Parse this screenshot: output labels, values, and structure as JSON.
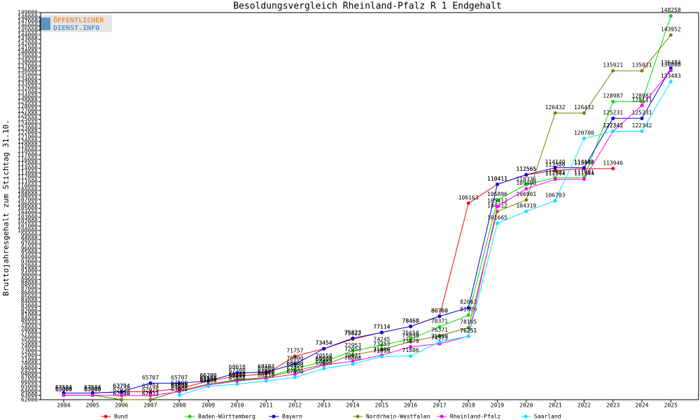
{
  "chart_data": {
    "type": "line",
    "title": "Besoldungsvergleich Rheinland-Pfalz R 1 Endgehalt",
    "y_label": "Bruttojahresgehalt zum Stichtag 31.10.",
    "logo": [
      "ÖFFENTLICHER",
      "DIENST.INFO"
    ],
    "categories": [
      "2004",
      "2005",
      "2006",
      "2007",
      "2008",
      "2009",
      "2010",
      "2011",
      "2012",
      "2013",
      "2014",
      "2015",
      "2016",
      "2017",
      "2018",
      "2019",
      "2020",
      "2021",
      "2022",
      "2023",
      "2024",
      "2025"
    ],
    "ylim": [
      62000,
      149000
    ],
    "yticks": [
      62000,
      63000,
      64000,
      65000,
      66000,
      67000,
      68000,
      69000,
      70000,
      71000,
      72000,
      73000,
      74000,
      75000,
      76000,
      77000,
      78000,
      79000,
      80000,
      81000,
      82000,
      83000,
      84000,
      85000,
      86000,
      87000,
      88000,
      89000,
      90000,
      91000,
      92000,
      93000,
      94000,
      95000,
      96000,
      97000,
      98000,
      99000,
      100000,
      101000,
      102000,
      103000,
      104000,
      105000,
      106000,
      107000,
      108000,
      109000,
      110000,
      111000,
      112000,
      113000,
      114000,
      115000,
      116000,
      117000,
      118000,
      119000,
      120000,
      121000,
      122000,
      123000,
      124000,
      125000,
      126000,
      127000,
      128000,
      129000,
      130000,
      131000,
      132000,
      133000,
      134000,
      135000,
      136000,
      137000,
      138000,
      139000,
      140000,
      141000,
      142000,
      143000,
      144000,
      145000,
      146000,
      147000,
      148000,
      149000
    ],
    "grid": false,
    "series": [
      {
        "name": "Bund",
        "color": "#ff0000",
        "values": [
          63504,
          63504,
          63794,
          63794,
          64500,
          66200,
          67300,
          67800,
          71757,
          73454,
          75622,
          77114,
          78468,
          80760,
          106163,
          110411,
          112565,
          113500,
          113946,
          113946,
          null,
          null
        ]
      },
      {
        "name": "Baden-Württemberg",
        "color": "#00e000",
        "values": [
          63000,
          63000,
          62000,
          62023,
          64000,
          65500,
          66500,
          67000,
          69000,
          70550,
          72953,
          74245,
          75658,
          78371,
          81000,
          106896,
          110336,
          111901,
          111901,
          128987,
          128987,
          148258
        ]
      },
      {
        "name": "Bayern",
        "color": "#0000e0",
        "values": [
          63504,
          63504,
          63794,
          65707,
          65707,
          66200,
          68018,
          68193,
          70000,
          73454,
          75823,
          77114,
          78468,
          80760,
          82663,
          110411,
          112565,
          114140,
          114140,
          125231,
          125231,
          136484
        ]
      },
      {
        "name": "Nordrhein-Westfalen",
        "color": "#808000",
        "values": [
          63000,
          63000,
          62029,
          62023,
          64000,
          65500,
          66300,
          67000,
          68500,
          69926,
          72053,
          73253,
          75039,
          76371,
          78185,
          104312,
          106901,
          126432,
          126432,
          135921,
          135921,
          143952
        ]
      },
      {
        "name": "Rheinland-Pfalz",
        "color": "#ff00ff",
        "values": [
          63000,
          63000,
          62929,
          62929,
          63800,
          65300,
          66200,
          66800,
          67757,
          69800,
          70631,
          71999,
          73879,
          74573,
          76251,
          105412,
          109408,
          111544,
          111544,
          122342,
          128111,
          136000
        ]
      },
      {
        "name": "Saarland",
        "color": "#00e8ff",
        "values": [
          null,
          null,
          null,
          null,
          63000,
          65000,
          65500,
          66219,
          67000,
          69000,
          70000,
          71699,
          71806,
          75000,
          76251,
          101665,
          104319,
          106703,
          120700,
          122342,
          122342,
          133483
        ]
      }
    ]
  }
}
